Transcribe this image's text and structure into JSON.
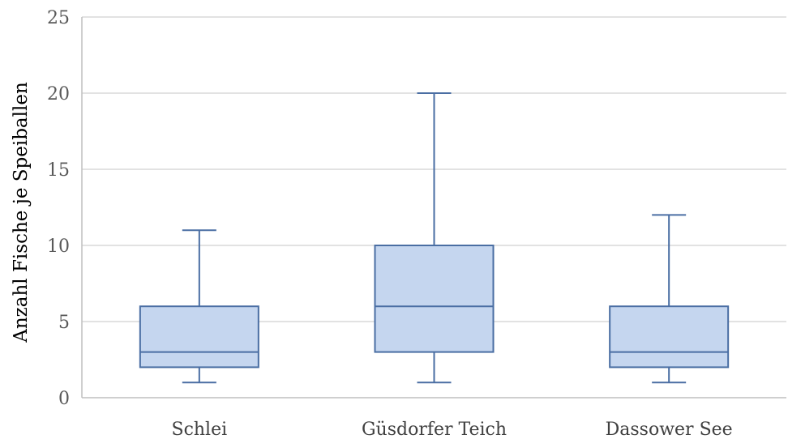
{
  "chart_data": {
    "type": "boxplot",
    "title": "",
    "xlabel": "",
    "ylabel": "Anzahl Fische je Speiballen",
    "ylim": [
      0,
      25
    ],
    "yticks": [
      0,
      5,
      10,
      15,
      20,
      25
    ],
    "grid": true,
    "legend": "none",
    "categories": [
      "Schlei",
      "Güsdorfer Teich",
      "Dassower See"
    ],
    "boxes": [
      {
        "category": "Schlei",
        "min": 1,
        "q1": 2,
        "median": 3,
        "q3": 6,
        "max": 11
      },
      {
        "category": "Güsdorfer Teich",
        "min": 1,
        "q1": 3,
        "median": 6,
        "q3": 10,
        "max": 20
      },
      {
        "category": "Dassower See",
        "min": 1,
        "q1": 2,
        "median": 3,
        "q3": 6,
        "max": 12
      }
    ],
    "colors": {
      "box_fill": "#c5d6ef",
      "box_stroke": "#4a6ea3",
      "grid": "#d9d9d9",
      "axis": "#bfbfbf"
    }
  }
}
